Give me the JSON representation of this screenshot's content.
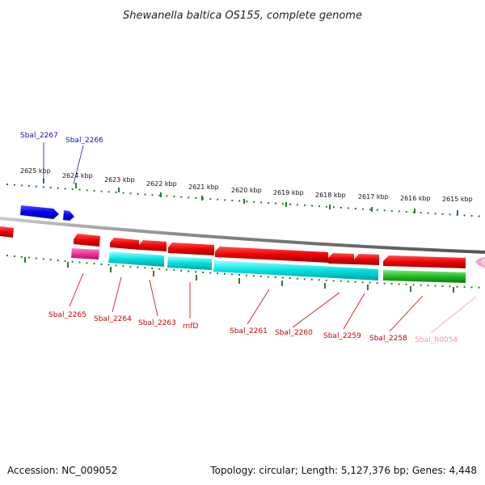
{
  "title": "Shewanella baltica OS155, complete genome",
  "footer": {
    "accession": "Accession: NC_009052",
    "summary": "Topology: circular; Length: 5,127,376 bp; Genes: 4,448"
  },
  "ruler": {
    "labels": [
      "2625 kbp",
      "2624 kbp",
      "2623 kbp",
      "2622 kbp",
      "2621 kbp",
      "2620 kbp",
      "2619 kbp",
      "2618 kbp",
      "2617 kbp",
      "2616 kbp",
      "2615 kbp"
    ]
  },
  "genes_top": [
    {
      "label": "Sbal_2267",
      "color": "#1010c8"
    },
    {
      "label": "Sbal_2266",
      "color": "#1010c8"
    }
  ],
  "genes_bottom": [
    {
      "label": "Sbal_2265",
      "color": "#cc0000"
    },
    {
      "label": "Sbal_2264",
      "color": "#cc0000"
    },
    {
      "label": "Sbal_2263",
      "color": "#cc0000"
    },
    {
      "label": "rnfD",
      "color": "#cc0000"
    },
    {
      "label": "Sbal_2261",
      "color": "#cc0000"
    },
    {
      "label": "Sbal_2260",
      "color": "#cc0000"
    },
    {
      "label": "Sbal_2259",
      "color": "#cc0000"
    },
    {
      "label": "Sbal_2258",
      "color": "#cc0000"
    },
    {
      "label": "Sbal_R0054",
      "color": "#f090b8"
    }
  ],
  "colors": {
    "forward_cds": "#0000ee",
    "reverse_cds": "#ee0000",
    "gene_feature": "#00dddd",
    "pink_feature": "#ee3399",
    "green_feature": "#22bb22",
    "trna": "#f4a0c8",
    "backbone": "#888888",
    "ticks": "#2a7a2a"
  }
}
